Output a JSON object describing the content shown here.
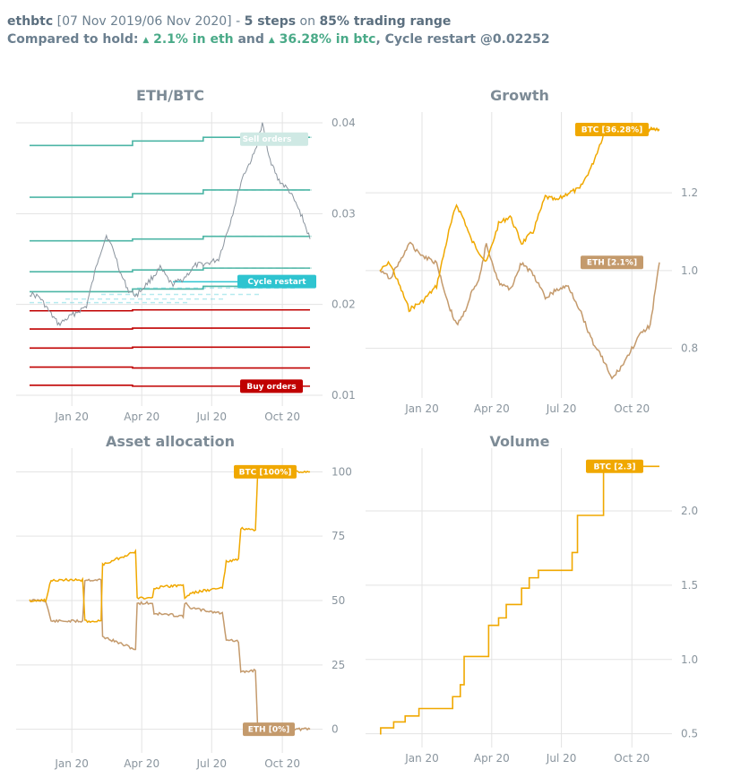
{
  "header": {
    "pair": "ethbtc",
    "range": "[07 Nov 2019/06 Nov 2020]",
    "sep": "-",
    "steps": "5 steps",
    "on": "on",
    "trading": "85% trading range",
    "compared": "Compared to hold:",
    "eth_gain": "2.1% in eth",
    "and": "and",
    "btc_gain": "36.28% in btc",
    "restart": ", Cycle restart @0.02252"
  },
  "colors": {
    "sell": "#4db6a6",
    "buy": "#c00000",
    "restart": "#2ec4d0",
    "price": "#8a949e",
    "btc": "#f0a800",
    "eth": "#c49a6c",
    "grid": "#e3e3e3"
  },
  "chart_data": [
    {
      "type": "line",
      "title": "ETH/BTC",
      "x_ticks": [
        "Jan 20",
        "Apr 20",
        "Jul 20",
        "Oct 20"
      ],
      "y_ticks": [
        "0.01",
        "0.02",
        "0.03",
        "0.04"
      ],
      "ylim": [
        0.01,
        0.04
      ],
      "annotations": [
        "Sell orders",
        "Cycle restart",
        "Buy orders"
      ],
      "cycle_restart": 0.02252,
      "sell_levels": [
        [
          0.0375,
          0.038,
          0.0384
        ],
        [
          0.0318,
          0.0322,
          0.0326
        ],
        [
          0.027,
          0.0272,
          0.0275
        ],
        [
          0.0236,
          0.0238,
          0.024
        ],
        [
          0.0214,
          0.0217,
          0.022
        ]
      ],
      "restart_levels": [
        0.0202,
        0.0206,
        0.0211,
        0.0218,
        0.0225
      ],
      "buy_levels": [
        [
          0.0193,
          0.0194
        ],
        [
          0.0173,
          0.0174
        ],
        [
          0.0152,
          0.0153
        ],
        [
          0.0131,
          0.013
        ],
        [
          0.0111,
          0.011
        ]
      ],
      "price": [
        [
          "2019-11-07",
          0.0212
        ],
        [
          "2019-11-20",
          0.0208
        ],
        [
          "2019-12-05",
          0.0189
        ],
        [
          "2019-12-15",
          0.0178
        ],
        [
          "2020-01-01",
          0.0188
        ],
        [
          "2020-01-20",
          0.0198
        ],
        [
          "2020-02-05",
          0.0252
        ],
        [
          "2020-02-15",
          0.0276
        ],
        [
          "2020-02-25",
          0.0258
        ],
        [
          "2020-03-05",
          0.0233
        ],
        [
          "2020-03-15",
          0.0215
        ],
        [
          "2020-03-25",
          0.021
        ],
        [
          "2020-04-10",
          0.0225
        ],
        [
          "2020-04-25",
          0.024
        ],
        [
          "2020-05-10",
          0.0222
        ],
        [
          "2020-05-25",
          0.0228
        ],
        [
          "2020-06-10",
          0.0243
        ],
        [
          "2020-06-25",
          0.0245
        ],
        [
          "2020-07-10",
          0.025
        ],
        [
          "2020-07-25",
          0.029
        ],
        [
          "2020-08-10",
          0.034
        ],
        [
          "2020-08-25",
          0.0365
        ],
        [
          "2020-09-05",
          0.0398
        ],
        [
          "2020-09-15",
          0.036
        ],
        [
          "2020-09-25",
          0.0338
        ],
        [
          "2020-10-10",
          0.0325
        ],
        [
          "2020-10-25",
          0.03
        ],
        [
          "2020-11-06",
          0.0272
        ]
      ]
    },
    {
      "type": "line",
      "title": "Growth",
      "x_ticks": [
        "Jan 20",
        "Apr 20",
        "Jul 20",
        "Oct 20"
      ],
      "y_ticks": [
        "0.8",
        "1.0",
        "1.2"
      ],
      "ylim": [
        0.7,
        1.38
      ],
      "series": [
        {
          "name": "BTC [36.28%]",
          "points": [
            [
              "2019-11-07",
              1.0
            ],
            [
              "2019-11-20",
              1.02
            ],
            [
              "2019-12-05",
              0.95
            ],
            [
              "2019-12-15",
              0.9
            ],
            [
              "2020-01-01",
              0.92
            ],
            [
              "2020-01-20",
              0.96
            ],
            [
              "2020-02-05",
              1.1
            ],
            [
              "2020-02-15",
              1.17
            ],
            [
              "2020-02-25",
              1.13
            ],
            [
              "2020-03-05",
              1.08
            ],
            [
              "2020-03-15",
              1.05
            ],
            [
              "2020-03-25",
              1.02
            ],
            [
              "2020-04-10",
              1.12
            ],
            [
              "2020-04-25",
              1.14
            ],
            [
              "2020-05-10",
              1.07
            ],
            [
              "2020-05-25",
              1.1
            ],
            [
              "2020-06-10",
              1.19
            ],
            [
              "2020-06-25",
              1.18
            ],
            [
              "2020-07-10",
              1.2
            ],
            [
              "2020-07-25",
              1.21
            ],
            [
              "2020-08-10",
              1.27
            ],
            [
              "2020-08-25",
              1.35
            ],
            [
              "2020-09-05",
              1.36
            ],
            [
              "2020-11-06",
              1.3628
            ]
          ]
        },
        {
          "name": "ETH [2.1%]",
          "points": [
            [
              "2019-11-07",
              1.0
            ],
            [
              "2019-11-20",
              0.98
            ],
            [
              "2019-12-05",
              1.03
            ],
            [
              "2019-12-15",
              1.07
            ],
            [
              "2020-01-01",
              1.04
            ],
            [
              "2020-01-20",
              1.02
            ],
            [
              "2020-02-05",
              0.91
            ],
            [
              "2020-02-15",
              0.86
            ],
            [
              "2020-02-25",
              0.89
            ],
            [
              "2020-03-05",
              0.94
            ],
            [
              "2020-03-15",
              0.97
            ],
            [
              "2020-03-25",
              1.07
            ],
            [
              "2020-04-10",
              0.97
            ],
            [
              "2020-04-25",
              0.95
            ],
            [
              "2020-05-10",
              1.02
            ],
            [
              "2020-05-25",
              0.99
            ],
            [
              "2020-06-10",
              0.93
            ],
            [
              "2020-06-25",
              0.95
            ],
            [
              "2020-07-10",
              0.96
            ],
            [
              "2020-07-25",
              0.9
            ],
            [
              "2020-08-10",
              0.82
            ],
            [
              "2020-08-25",
              0.77
            ],
            [
              "2020-09-05",
              0.72
            ],
            [
              "2020-09-20",
              0.76
            ],
            [
              "2020-10-10",
              0.83
            ],
            [
              "2020-10-25",
              0.86
            ],
            [
              "2020-11-06",
              1.021
            ]
          ]
        }
      ]
    },
    {
      "type": "line",
      "title": "Asset allocation",
      "x_ticks": [
        "Jan 20",
        "Apr 20",
        "Jul 20",
        "Oct 20"
      ],
      "y_ticks": [
        "0",
        "25",
        "50",
        "75",
        "100"
      ],
      "ylim": [
        -5,
        105
      ],
      "series": [
        {
          "name": "BTC [100%]",
          "points": [
            [
              "2019-11-07",
              50
            ],
            [
              "2019-11-28",
              50
            ],
            [
              "2019-12-05",
              58
            ],
            [
              "2020-01-15",
              58
            ],
            [
              "2020-01-18",
              42
            ],
            [
              "2020-02-08",
              42
            ],
            [
              "2020-02-10",
              64
            ],
            [
              "2020-03-24",
              69
            ],
            [
              "2020-03-26",
              51
            ],
            [
              "2020-04-15",
              51
            ],
            [
              "2020-04-17",
              55
            ],
            [
              "2020-05-25",
              56
            ],
            [
              "2020-05-27",
              51
            ],
            [
              "2020-06-05",
              53
            ],
            [
              "2020-07-15",
              55
            ],
            [
              "2020-07-20",
              65
            ],
            [
              "2020-08-05",
              66
            ],
            [
              "2020-08-08",
              78
            ],
            [
              "2020-08-27",
              77
            ],
            [
              "2020-08-30",
              100
            ],
            [
              "2020-11-06",
              100
            ]
          ]
        },
        {
          "name": "ETH [0%]",
          "points": [
            [
              "2019-11-07",
              50
            ],
            [
              "2019-11-28",
              50
            ],
            [
              "2019-12-05",
              42
            ],
            [
              "2020-01-15",
              42
            ],
            [
              "2020-01-18",
              58
            ],
            [
              "2020-02-08",
              58
            ],
            [
              "2020-02-10",
              36
            ],
            [
              "2020-03-24",
              31
            ],
            [
              "2020-03-26",
              49
            ],
            [
              "2020-04-15",
              49
            ],
            [
              "2020-04-17",
              45
            ],
            [
              "2020-05-25",
              44
            ],
            [
              "2020-05-27",
              49
            ],
            [
              "2020-06-05",
              47
            ],
            [
              "2020-07-15",
              45
            ],
            [
              "2020-07-20",
              35
            ],
            [
              "2020-08-05",
              34
            ],
            [
              "2020-08-08",
              22
            ],
            [
              "2020-08-27",
              23
            ],
            [
              "2020-08-30",
              0
            ],
            [
              "2020-11-06",
              0
            ]
          ]
        }
      ]
    },
    {
      "type": "line",
      "title": "Volume",
      "x_ticks": [
        "Jan 20",
        "Apr 20",
        "Jul 20",
        "Oct 20"
      ],
      "y_ticks": [
        "0.5",
        "1.0",
        "1.5",
        "2.0"
      ],
      "ylim": [
        0.48,
        2.35
      ],
      "series": [
        {
          "name": "BTC [2.3]",
          "points": [
            [
              "2019-11-07",
              0.5
            ],
            [
              "2019-11-08",
              0.54
            ],
            [
              "2019-11-25",
              0.58
            ],
            [
              "2019-12-10",
              0.62
            ],
            [
              "2019-12-28",
              0.67
            ],
            [
              "2020-02-10",
              0.75
            ],
            [
              "2020-02-20",
              0.83
            ],
            [
              "2020-02-25",
              1.02
            ],
            [
              "2020-03-28",
              1.23
            ],
            [
              "2020-04-10",
              1.28
            ],
            [
              "2020-04-20",
              1.37
            ],
            [
              "2020-05-10",
              1.48
            ],
            [
              "2020-05-20",
              1.55
            ],
            [
              "2020-06-01",
              1.6
            ],
            [
              "2020-07-15",
              1.72
            ],
            [
              "2020-07-22",
              1.97
            ],
            [
              "2020-08-25",
              2.3
            ],
            [
              "2020-11-06",
              2.3
            ]
          ]
        }
      ]
    }
  ]
}
